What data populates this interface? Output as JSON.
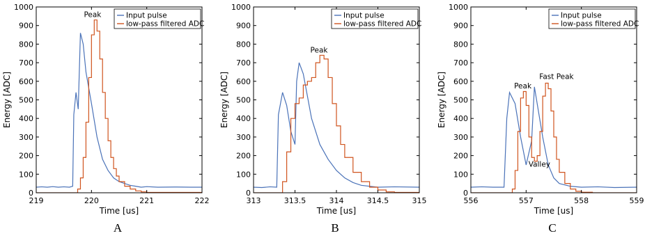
{
  "colors": {
    "input": "#4a72b8",
    "filtered": "#d0541e"
  },
  "chart_data": [
    {
      "type": "line",
      "panel_label": "A",
      "xlabel": "Time [us]",
      "ylabel": "Energy [ADC]",
      "xlim": [
        219,
        222
      ],
      "ylim": [
        0,
        1000
      ],
      "xticks": [
        "219",
        "220",
        "221",
        "222"
      ],
      "yticks": [
        "0",
        "100",
        "200",
        "300",
        "400",
        "500",
        "600",
        "700",
        "800",
        "900",
        "1000"
      ],
      "legend": {
        "placement": "top-right",
        "entries": [
          "Input pulse",
          "low-pass filtered ADC"
        ]
      },
      "series": [
        {
          "name": "Input pulse",
          "step": false,
          "x": [
            219.0,
            219.1,
            219.2,
            219.3,
            219.4,
            219.5,
            219.6,
            219.66,
            219.68,
            219.72,
            219.76,
            219.8,
            219.85,
            219.9,
            220.0,
            220.1,
            220.2,
            220.3,
            220.4,
            220.5,
            220.6,
            220.7,
            220.8,
            220.9,
            221.0,
            221.2,
            221.5,
            221.8,
            222.0
          ],
          "y": [
            30,
            32,
            30,
            33,
            30,
            32,
            30,
            35,
            420,
            540,
            450,
            860,
            800,
            650,
            480,
            300,
            180,
            120,
            80,
            60,
            50,
            40,
            35,
            30,
            33,
            30,
            31,
            30,
            30
          ]
        },
        {
          "name": "low-pass filtered ADC",
          "step": true,
          "x": [
            219.0,
            219.5,
            219.7,
            219.75,
            219.8,
            219.85,
            219.9,
            219.95,
            220.0,
            220.05,
            220.1,
            220.15,
            220.2,
            220.25,
            220.3,
            220.35,
            220.4,
            220.45,
            220.5,
            220.6,
            220.7,
            220.8,
            220.9,
            221.0,
            222.0
          ],
          "y": [
            0,
            0,
            0,
            20,
            80,
            190,
            380,
            620,
            850,
            930,
            870,
            720,
            540,
            400,
            280,
            190,
            130,
            90,
            60,
            35,
            20,
            10,
            5,
            2,
            0
          ]
        }
      ],
      "annotations": [
        {
          "text": "Peak",
          "x": 220.02,
          "y": 945
        }
      ]
    },
    {
      "type": "line",
      "panel_label": "B",
      "xlabel": "Time [us]",
      "ylabel": "Energy [ADC]",
      "xlim": [
        313,
        315
      ],
      "ylim": [
        0,
        1000
      ],
      "xticks": [
        "313",
        "313.5",
        "314",
        "314.5",
        "315"
      ],
      "yticks": [
        "0",
        "100",
        "200",
        "300",
        "400",
        "500",
        "600",
        "700",
        "800",
        "900",
        "1000"
      ],
      "legend": {
        "placement": "top-right",
        "entries": [
          "Input pulse",
          "low-pass filtered ADC"
        ]
      },
      "series": [
        {
          "name": "Input pulse",
          "step": false,
          "x": [
            313.0,
            313.1,
            313.2,
            313.28,
            313.3,
            313.35,
            313.4,
            313.45,
            313.5,
            313.52,
            313.55,
            313.6,
            313.7,
            313.8,
            313.9,
            314.0,
            314.1,
            314.2,
            314.3,
            314.5,
            314.7,
            315.0
          ],
          "y": [
            30,
            28,
            32,
            30,
            420,
            540,
            470,
            330,
            260,
            600,
            700,
            640,
            400,
            260,
            180,
            120,
            80,
            55,
            40,
            30,
            32,
            30
          ]
        },
        {
          "name": "low-pass filtered ADC",
          "step": true,
          "x": [
            313.0,
            313.3,
            313.35,
            313.4,
            313.45,
            313.5,
            313.55,
            313.6,
            313.65,
            313.7,
            313.75,
            313.8,
            313.85,
            313.9,
            313.95,
            314.0,
            314.05,
            314.1,
            314.2,
            314.3,
            314.4,
            314.5,
            314.6,
            314.7,
            315.0
          ],
          "y": [
            0,
            0,
            60,
            220,
            400,
            480,
            510,
            580,
            600,
            620,
            700,
            740,
            720,
            620,
            480,
            360,
            260,
            190,
            110,
            60,
            30,
            15,
            5,
            2,
            0
          ]
        }
      ],
      "annotations": [
        {
          "text": "Peak",
          "x": 313.79,
          "y": 755
        }
      ]
    },
    {
      "type": "line",
      "panel_label": "C",
      "xlabel": "Time [us]",
      "ylabel": "Energy [ADC]",
      "xlim": [
        556,
        559
      ],
      "ylim": [
        0,
        1000
      ],
      "xticks": [
        "556",
        "557",
        "558",
        "559"
      ],
      "yticks": [
        "0",
        "100",
        "200",
        "300",
        "400",
        "500",
        "600",
        "700",
        "800",
        "900",
        "1000"
      ],
      "legend": {
        "placement": "top-right",
        "entries": [
          "Input pulse",
          "low-pass filtered ADC"
        ]
      },
      "series": [
        {
          "name": "Input pulse",
          "step": false,
          "x": [
            556.0,
            556.2,
            556.4,
            556.6,
            556.65,
            556.7,
            556.8,
            556.9,
            557.0,
            557.1,
            557.15,
            557.2,
            557.3,
            557.4,
            557.5,
            557.6,
            557.8,
            558.0,
            558.3,
            558.6,
            559.0
          ],
          "y": [
            30,
            32,
            30,
            30,
            400,
            540,
            480,
            300,
            150,
            280,
            570,
            480,
            300,
            150,
            80,
            50,
            35,
            30,
            32,
            28,
            30
          ]
        },
        {
          "name": "low-pass filtered ADC",
          "step": true,
          "x": [
            556.0,
            556.7,
            556.75,
            556.8,
            556.85,
            556.9,
            556.95,
            557.0,
            557.05,
            557.1,
            557.15,
            557.2,
            557.25,
            557.3,
            557.35,
            557.4,
            557.45,
            557.5,
            557.55,
            557.6,
            557.7,
            557.8,
            557.9,
            558.0,
            558.2,
            559.0
          ],
          "y": [
            0,
            0,
            20,
            120,
            330,
            510,
            545,
            470,
            300,
            190,
            170,
            200,
            330,
            520,
            590,
            560,
            440,
            300,
            180,
            110,
            50,
            20,
            8,
            3,
            0,
            0
          ]
        }
      ],
      "annotations": [
        {
          "text": "Peak",
          "x": 556.94,
          "y": 562
        },
        {
          "text": "Fast Peak",
          "x": 557.55,
          "y": 612
        },
        {
          "text": "Valley",
          "x": 557.24,
          "y": 140
        }
      ]
    }
  ]
}
